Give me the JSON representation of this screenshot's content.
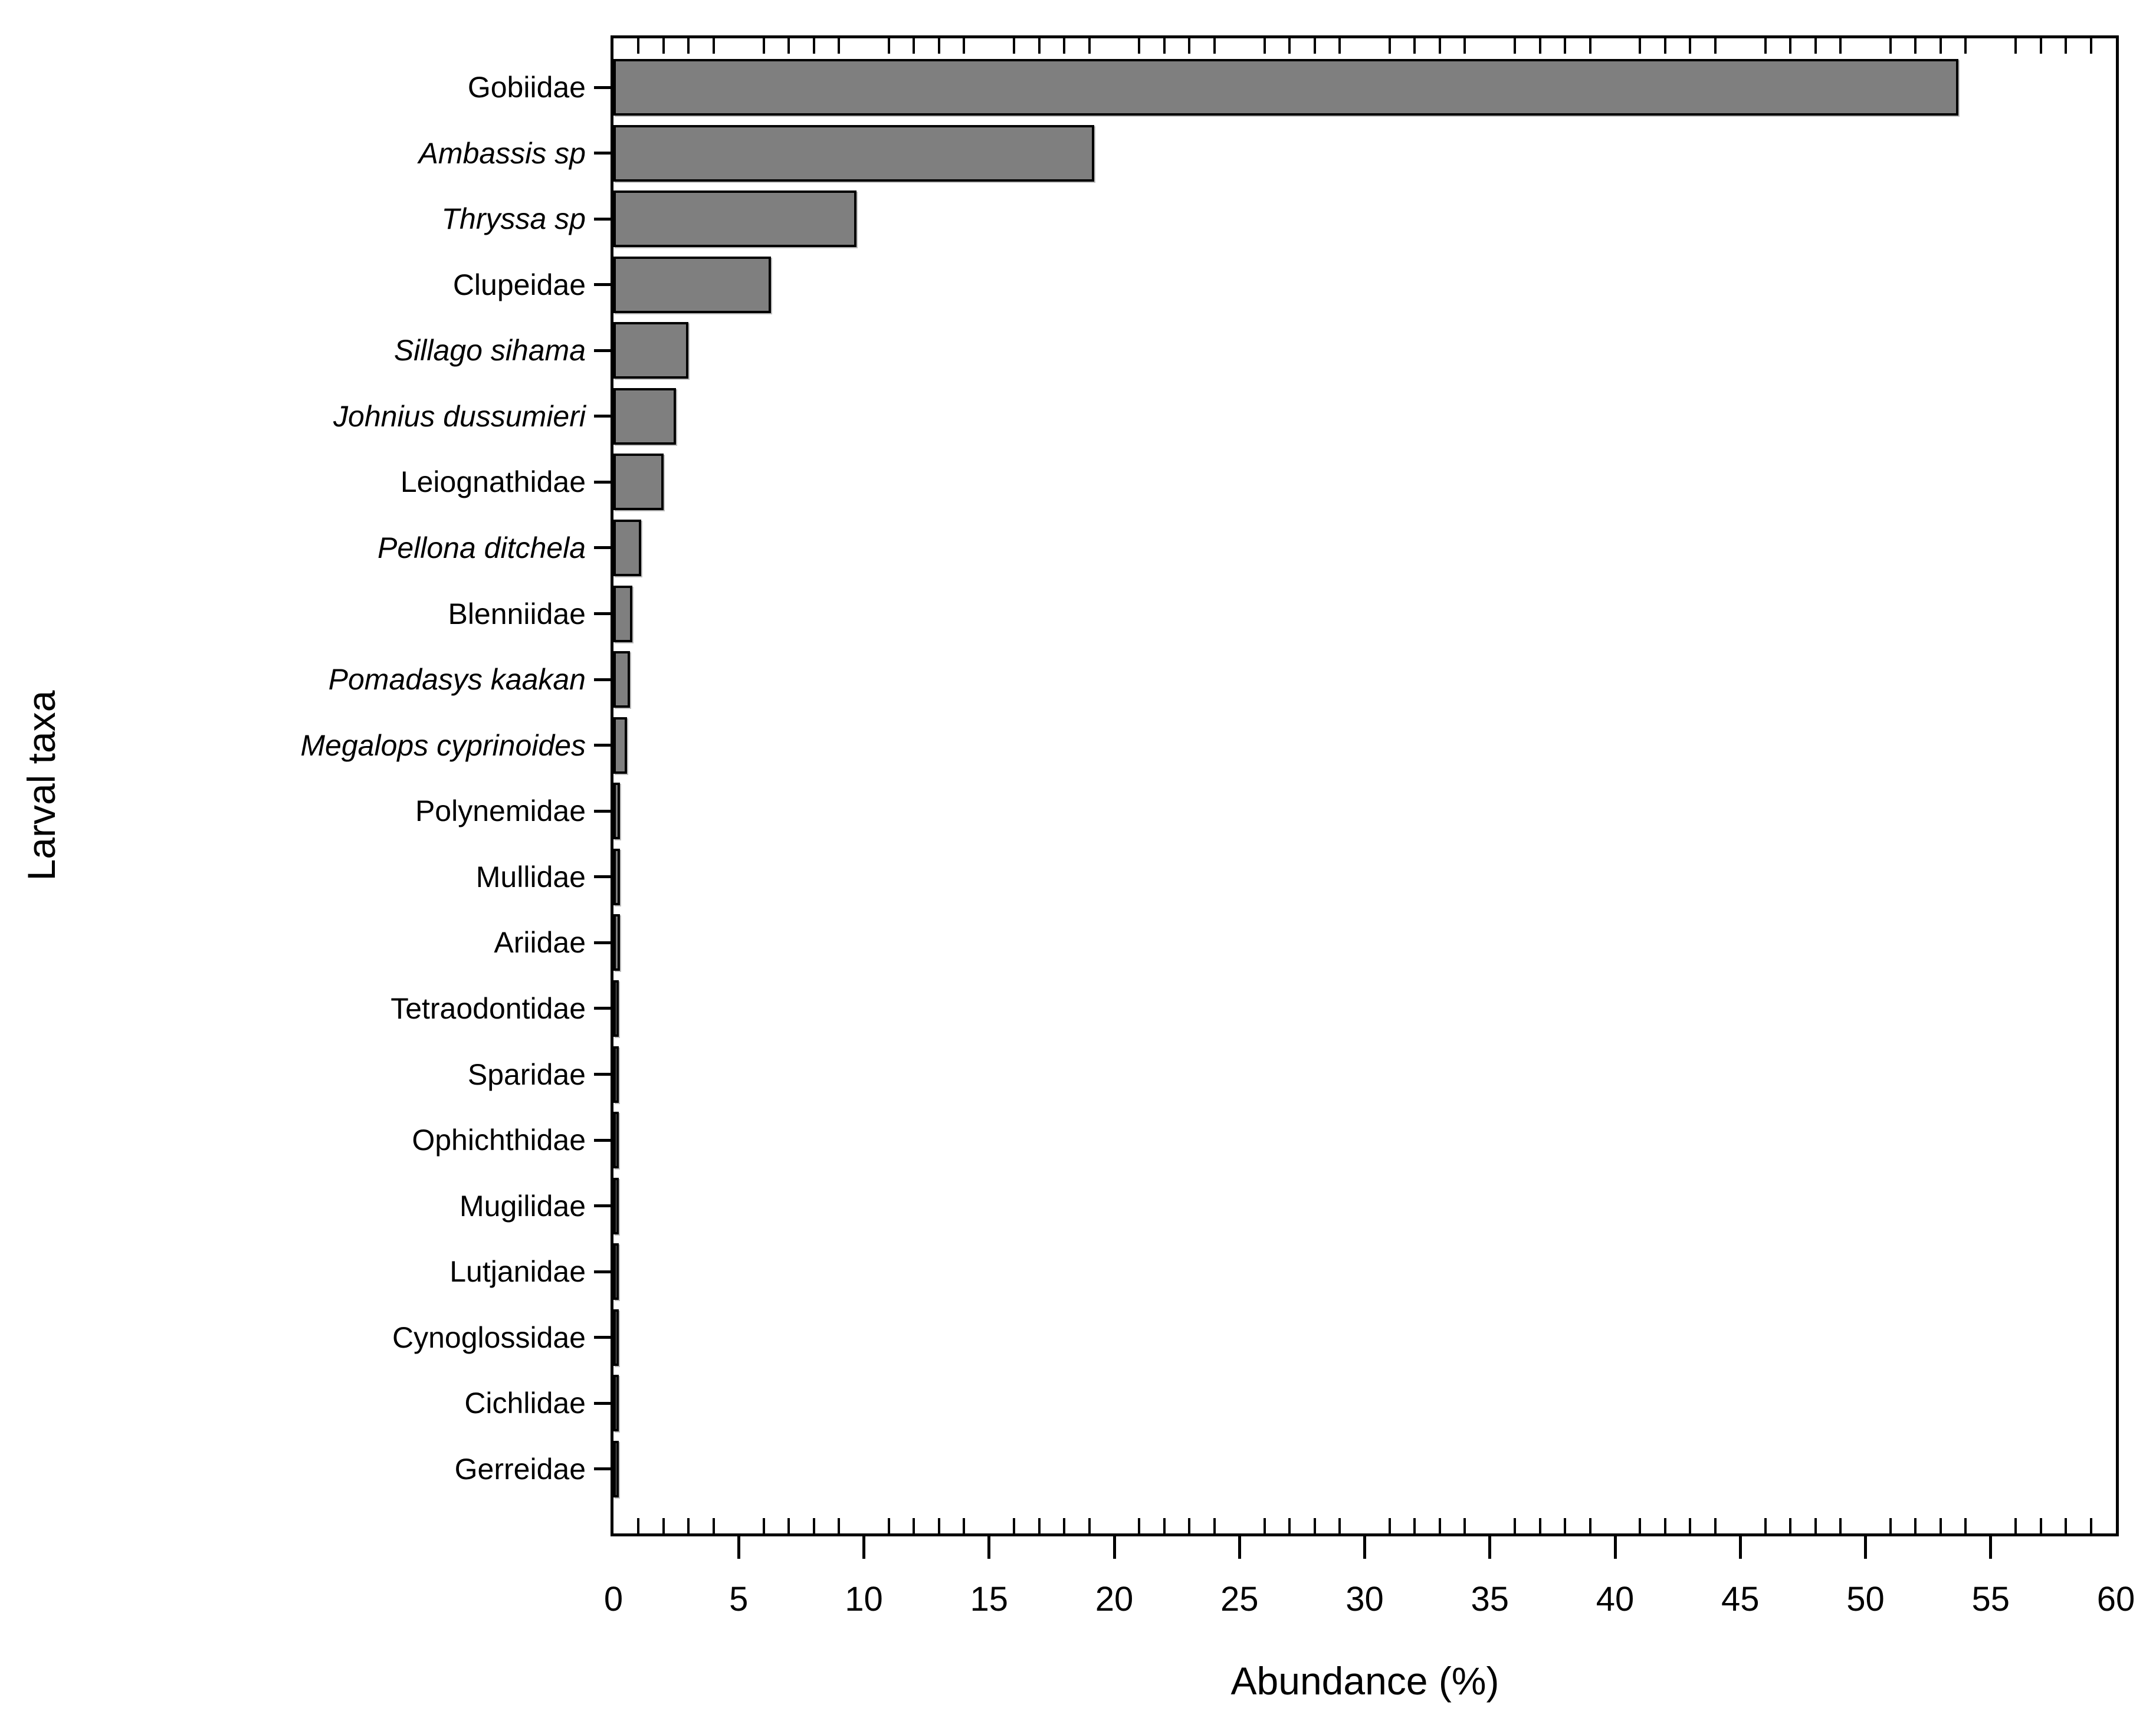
{
  "chart_data": {
    "type": "bar",
    "orientation": "horizontal",
    "title": "",
    "xlabel": "Abundance (%)",
    "ylabel": "Larval taxa",
    "xlim": [
      0,
      60
    ],
    "x_major_tick_step": 5,
    "x_minor_tick_step": 1,
    "x_tick_labels": [
      "0",
      "5",
      "10",
      "15",
      "20",
      "25",
      "30",
      "35",
      "40",
      "45",
      "50",
      "55",
      "60"
    ],
    "grid": false,
    "legend": "none",
    "bar_color": "#7f7f7f",
    "bar_border_color": "#000000",
    "categories": [
      {
        "label": "Gobiidae",
        "italic": false
      },
      {
        "label": "Ambassis sp",
        "italic": true
      },
      {
        "label": "Thryssa sp",
        "italic": true
      },
      {
        "label": "Clupeidae",
        "italic": false
      },
      {
        "label": "Sillago sihama",
        "italic": true
      },
      {
        "label": "Johnius dussumieri",
        "italic": true
      },
      {
        "label": "Leiognathidae",
        "italic": false
      },
      {
        "label": "Pellona ditchela",
        "italic": true
      },
      {
        "label": "Blenniidae",
        "italic": false
      },
      {
        "label": "Pomadasys kaakan",
        "italic": true
      },
      {
        "label": "Megalops cyprinoides",
        "italic": true
      },
      {
        "label": "Polynemidae",
        "italic": false
      },
      {
        "label": "Mullidae",
        "italic": false
      },
      {
        "label": "Ariidae",
        "italic": false
      },
      {
        "label": "Tetraodontidae",
        "italic": false
      },
      {
        "label": "Sparidae",
        "italic": false
      },
      {
        "label": "Ophichthidae",
        "italic": false
      },
      {
        "label": "Mugilidae",
        "italic": false
      },
      {
        "label": "Lutjanidae",
        "italic": false
      },
      {
        "label": "Cynoglossidae",
        "italic": false
      },
      {
        "label": "Cichlidae",
        "italic": false
      },
      {
        "label": "Gerreidae",
        "italic": false
      }
    ],
    "values": [
      53.7,
      19.2,
      9.7,
      6.3,
      3.0,
      2.5,
      2.0,
      1.1,
      0.75,
      0.65,
      0.55,
      0.27,
      0.27,
      0.27,
      0.15,
      0.12,
      0.12,
      0.1,
      0.1,
      0.1,
      0.07,
      0.07
    ]
  }
}
